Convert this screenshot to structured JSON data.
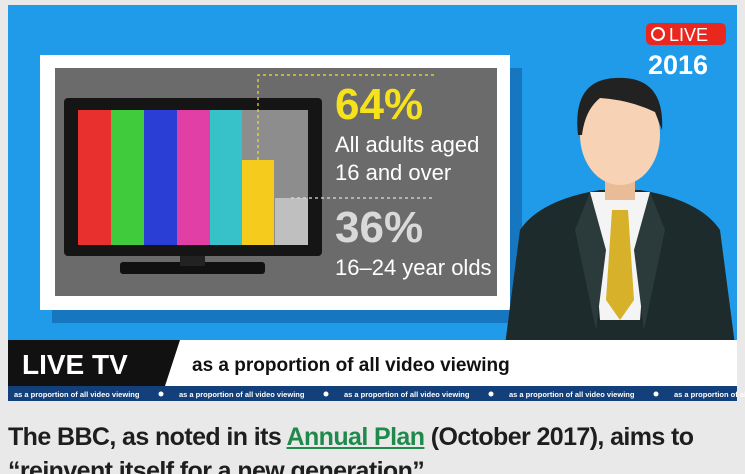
{
  "badge": {
    "live": "LIVE",
    "year": "2016"
  },
  "stats": [
    {
      "value": "64%",
      "label_lines": [
        "All adults aged",
        "16 and over"
      ]
    },
    {
      "value": "36%",
      "label_lines": [
        "16–24 year olds"
      ]
    }
  ],
  "banner": {
    "tag": "LIVE TV",
    "headline": "as a proportion of all video viewing"
  },
  "ticker": [
    "as a proportion of all video viewing",
    "as a proportion of all video viewing",
    "as a proportion of all video viewing",
    "as a proportion of all video viewing",
    "as a proportion of all video viewing"
  ],
  "paragraph": {
    "before": "The BBC, as noted in its ",
    "link": "Annual Plan",
    "after": " (October 2017), aims to",
    "line2": "“reinvent itself for a new generation”"
  }
}
